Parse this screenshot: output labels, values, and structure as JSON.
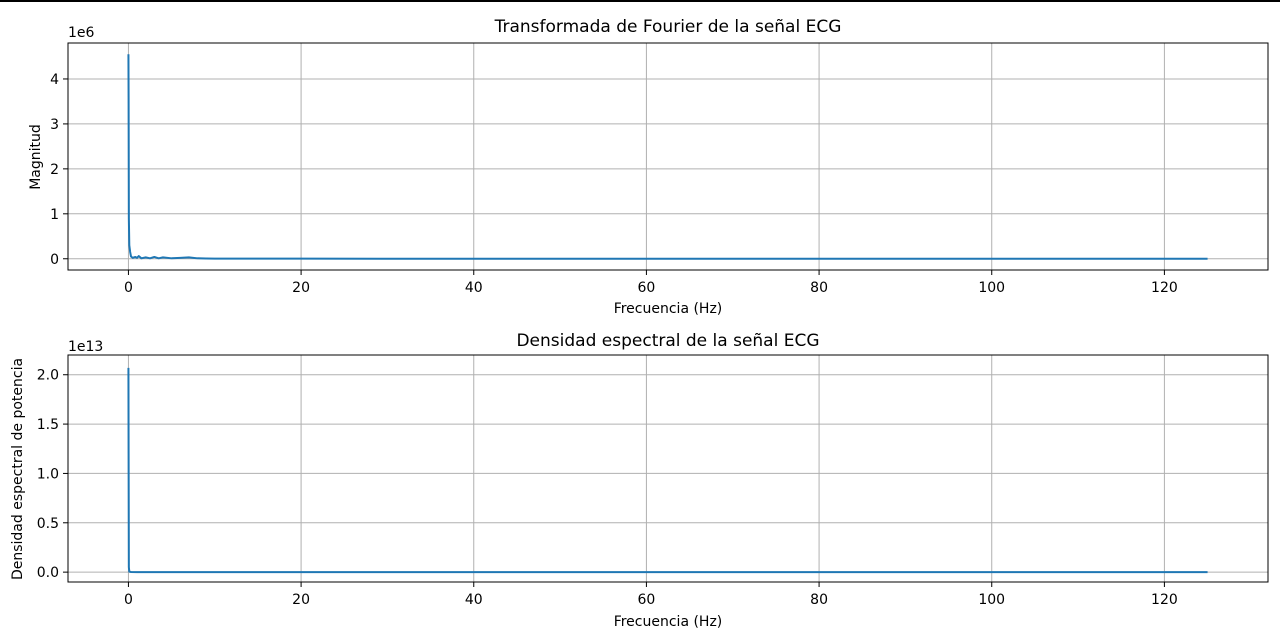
{
  "chart_data": [
    {
      "type": "line",
      "title": "Transformada de Fourier de la señal ECG",
      "xlabel": "Frecuencia (Hz)",
      "ylabel": "Magnitud",
      "y_offset_label": "1e6",
      "x_ticks": [
        "0",
        "20",
        "40",
        "60",
        "80",
        "100",
        "120"
      ],
      "y_ticks": [
        "0",
        "1",
        "2",
        "3",
        "4"
      ],
      "xlim": [
        -7,
        132
      ],
      "ylim": [
        -0.25,
        4.8
      ],
      "grid": true,
      "line_color": "#1f77b4",
      "series": [
        {
          "x": [
            0,
            0.02,
            0.05,
            0.1,
            0.2,
            0.3,
            0.5,
            0.8,
            1.0,
            1.2,
            1.5,
            2.0,
            2.5,
            3.0,
            3.5,
            4.0,
            5.0,
            6.0,
            7.0,
            7.5,
            8.0,
            9.0,
            10.0,
            20.0,
            40.0,
            60.0,
            80.0,
            100.0,
            125.0
          ],
          "y": [
            4.55,
            3.6,
            0.9,
            0.3,
            0.15,
            0.05,
            0.02,
            0.04,
            0.02,
            0.06,
            0.01,
            0.03,
            0.01,
            0.04,
            0.01,
            0.03,
            0.01,
            0.02,
            0.03,
            0.02,
            0.01,
            0.005,
            0.004,
            0.002,
            0.001,
            0.001,
            0.001,
            0.001,
            0.001
          ]
        }
      ]
    },
    {
      "type": "line",
      "title": "Densidad espectral de la señal ECG",
      "xlabel": "Frecuencia (Hz)",
      "ylabel": "Densidad espectral de potencia",
      "y_offset_label": "1e13",
      "x_ticks": [
        "0",
        "20",
        "40",
        "60",
        "80",
        "100",
        "120"
      ],
      "y_ticks": [
        "0.0",
        "0.5",
        "1.0",
        "1.5",
        "2.0"
      ],
      "xlim": [
        -7,
        132
      ],
      "ylim": [
        -0.1,
        2.2
      ],
      "grid": true,
      "line_color": "#1f77b4",
      "series": [
        {
          "x": [
            0,
            0.02,
            0.05,
            0.1,
            0.3,
            1.0,
            5.0,
            20.0,
            60.0,
            100.0,
            125.0
          ],
          "y": [
            2.07,
            1.2,
            0.05,
            0.005,
            0.001,
            0.0005,
            0.0002,
            0.0001,
            0.0001,
            0.0001,
            0.0001
          ]
        }
      ]
    }
  ]
}
